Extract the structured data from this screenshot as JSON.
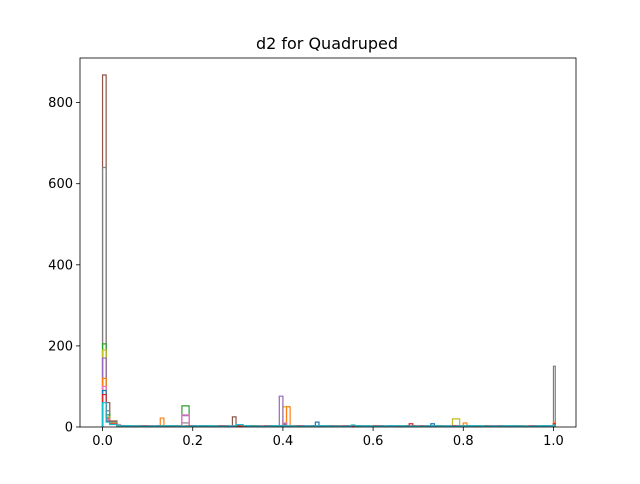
{
  "chart_data": {
    "type": "histogram-step",
    "title": "d2 for Quadruped",
    "xlabel": "",
    "ylabel": "",
    "xlim": [
      -0.05,
      1.05
    ],
    "ylim": [
      0,
      910
    ],
    "x_ticks": [
      0.0,
      0.2,
      0.4,
      0.6,
      0.8,
      1.0
    ],
    "x_tick_labels": [
      "0.0",
      "0.2",
      "0.4",
      "0.6",
      "0.8",
      "1.0"
    ],
    "y_ticks": [
      0,
      200,
      400,
      600,
      800
    ],
    "y_tick_labels": [
      "0",
      "200",
      "400",
      "600",
      "800"
    ],
    "grid": false,
    "legend": "none",
    "series_colors": [
      "#1f77b4",
      "#ff7f0e",
      "#2ca02c",
      "#d62728",
      "#9467bd",
      "#8c564b",
      "#e377c2",
      "#7f7f7f",
      "#bcbd22",
      "#17becf"
    ],
    "series": [
      {
        "color": "#8c564b",
        "peaks": [
          [
            0.0,
            868
          ],
          [
            0.005,
            60
          ],
          [
            0.02,
            15
          ],
          [
            0.29,
            25
          ],
          [
            0.4,
            8
          ],
          [
            1.0,
            8
          ]
        ]
      },
      {
        "color": "#7f7f7f",
        "peaks": [
          [
            0.0,
            640
          ],
          [
            0.005,
            40
          ],
          [
            0.02,
            12
          ],
          [
            0.18,
            10
          ],
          [
            0.4,
            6
          ],
          [
            1.0,
            150
          ]
        ]
      },
      {
        "color": "#2ca02c",
        "peaks": [
          [
            0.0,
            205
          ],
          [
            0.005,
            30
          ],
          [
            0.02,
            10
          ],
          [
            0.18,
            52
          ],
          [
            0.4,
            8
          ],
          [
            1.0,
            6
          ]
        ]
      },
      {
        "color": "#bcbd22",
        "peaks": [
          [
            0.0,
            190
          ],
          [
            0.005,
            25
          ],
          [
            0.02,
            10
          ],
          [
            0.4,
            50
          ],
          [
            0.78,
            20
          ],
          [
            1.0,
            5
          ]
        ]
      },
      {
        "color": "#9467bd",
        "peaks": [
          [
            0.0,
            170
          ],
          [
            0.005,
            22
          ],
          [
            0.02,
            8
          ],
          [
            0.395,
            76
          ],
          [
            0.18,
            28
          ],
          [
            1.0,
            6
          ]
        ]
      },
      {
        "color": "#ff7f0e",
        "peaks": [
          [
            0.0,
            120
          ],
          [
            0.005,
            20
          ],
          [
            0.02,
            8
          ],
          [
            0.125,
            22
          ],
          [
            0.405,
            50
          ],
          [
            0.8,
            10
          ],
          [
            1.0,
            12
          ]
        ]
      },
      {
        "color": "#e377c2",
        "peaks": [
          [
            0.0,
            100
          ],
          [
            0.005,
            18
          ],
          [
            0.02,
            8
          ],
          [
            0.18,
            30
          ],
          [
            0.4,
            10
          ],
          [
            1.0,
            6
          ]
        ]
      },
      {
        "color": "#1f77b4",
        "peaks": [
          [
            0.0,
            90
          ],
          [
            0.005,
            15
          ],
          [
            0.02,
            7
          ],
          [
            0.47,
            12
          ],
          [
            0.73,
            8
          ],
          [
            1.0,
            5
          ]
        ]
      },
      {
        "color": "#d62728",
        "peaks": [
          [
            0.0,
            80
          ],
          [
            0.005,
            14
          ],
          [
            0.02,
            7
          ],
          [
            0.68,
            8
          ],
          [
            1.0,
            8
          ]
        ]
      },
      {
        "color": "#17becf",
        "peaks": [
          [
            0.0,
            60
          ],
          [
            0.005,
            12
          ],
          [
            0.02,
            6
          ],
          [
            0.3,
            6
          ],
          [
            0.55,
            5
          ],
          [
            1.0,
            5
          ]
        ]
      }
    ]
  }
}
